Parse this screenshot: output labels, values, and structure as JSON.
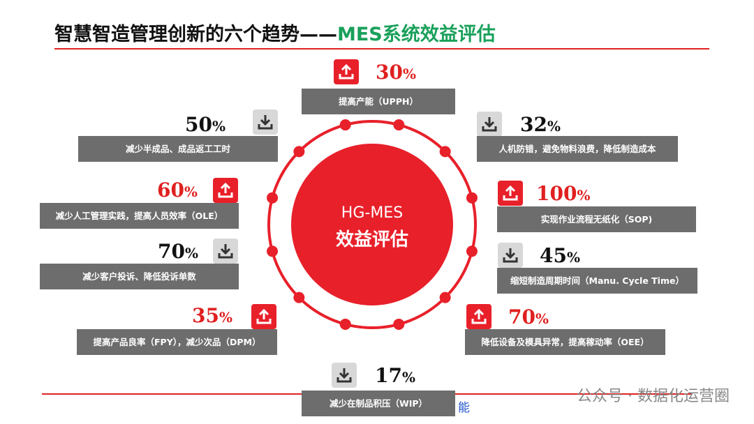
{
  "header": {
    "title": "智慧智造管理创新的六个趋势——",
    "title_highlight": "MES系统效益评估"
  },
  "center": {
    "line1": "HG-MES",
    "line2": "效益评估"
  },
  "items": [
    {
      "direction": "up",
      "value": "30",
      "unit": "%",
      "label": "提高产能（UPPH）"
    },
    {
      "direction": "down",
      "value": "50",
      "unit": "%",
      "label": "减少半成品、成品返工工时"
    },
    {
      "direction": "down",
      "value": "32",
      "unit": "%",
      "label": "人机防错，避免物料浪费，降低制造成本"
    },
    {
      "direction": "up",
      "value": "60",
      "unit": "%",
      "label": "减少人工管理实践，提高人员效率（OLE）"
    },
    {
      "direction": "up",
      "value": "100",
      "unit": "%",
      "label": "实现作业流程无纸化（SOP)"
    },
    {
      "direction": "down",
      "value": "70",
      "unit": "%",
      "label": "减少客户投诉、降低投诉单数"
    },
    {
      "direction": "down",
      "value": "45",
      "unit": "%",
      "label": "缩短制造周期时间（Manu. Cycle Time）"
    },
    {
      "direction": "up",
      "value": "35",
      "unit": "%",
      "label": "提高产品良率（FPY），减少次品（DPM）"
    },
    {
      "direction": "up",
      "value": "70",
      "unit": "%",
      "label": "降低设备及模具异常，提高稼动率（OEE）"
    },
    {
      "direction": "down",
      "value": "17",
      "unit": "%",
      "label": "减少在制品积压（WIP）"
    }
  ],
  "footer": {
    "fragment": "能",
    "watermark": "公众号 · 数据化运营圈"
  }
}
